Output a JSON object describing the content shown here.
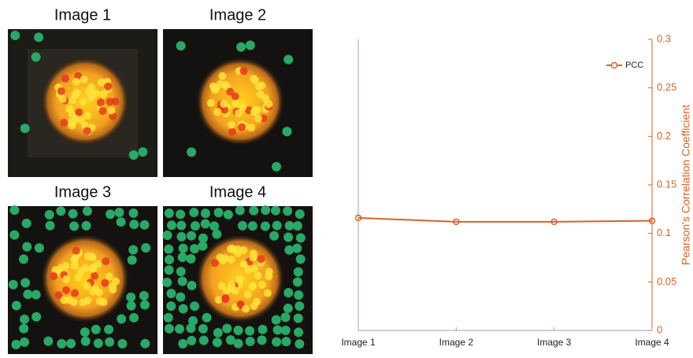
{
  "image_panels": [
    {
      "title": "Image 1"
    },
    {
      "title": "Image 2"
    },
    {
      "title": "Image 3"
    },
    {
      "title": "Image 4"
    }
  ],
  "chart_data": {
    "type": "line",
    "categories": [
      "Image 1",
      "Image 2",
      "Image 3",
      "Image 4"
    ],
    "series": [
      {
        "name": "PCC",
        "color": "#d9622b",
        "axis": "y2",
        "values": [
          0.116,
          0.112,
          0.112,
          0.113
        ]
      }
    ],
    "y2label": "Pearson's Correlation Coefficient",
    "y2lim": [
      0,
      0.3
    ],
    "y2ticks": [
      0,
      0.05,
      0.1,
      0.15,
      0.2,
      0.25,
      0.3
    ],
    "legend": "upper right"
  }
}
